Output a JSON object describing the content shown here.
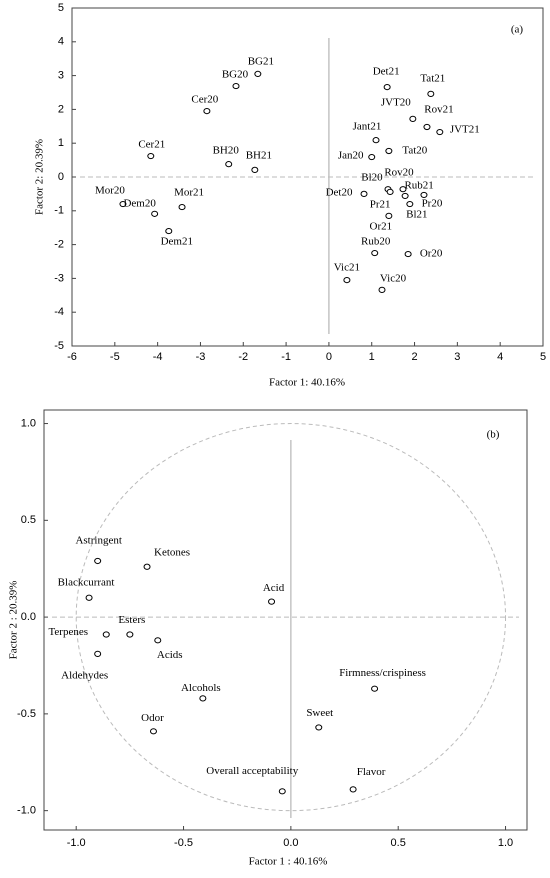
{
  "chart_data": [
    {
      "type": "scatter",
      "annotation": "(a)",
      "x_label": "Factor 1: 40.16%",
      "y_label": "Factor 2: 20.39%",
      "xlim": [
        -6,
        5
      ],
      "ylim": [
        -5,
        5
      ],
      "xticks": [
        -6,
        -5,
        -4,
        -3,
        -2,
        -1,
        0,
        1,
        2,
        3,
        4,
        5
      ],
      "yticks": [
        -5,
        -4,
        -3,
        -2,
        -1,
        0,
        1,
        2,
        3,
        4,
        5
      ],
      "zero_lines": true,
      "unit_circle": false,
      "marker_color": "#000000",
      "labels": [
        "BG21",
        "BG20",
        "Cer20",
        "Cer21",
        "BH20",
        "BH21",
        "Mor20",
        "Mor21",
        "Dem20",
        "Dem21",
        "Det21",
        "Tat21",
        "JVT20",
        "Rov21",
        "JVT21",
        "Jant21",
        "Tat20",
        "Jan20",
        "Bl20",
        "Pr21",
        "Rov20",
        "Rub21",
        "Pr20",
        "Bl21",
        "Or21",
        "Det20",
        "Rub20",
        "Or20",
        "Vic21",
        "Vic20"
      ],
      "x": [
        -1.66,
        -2.17,
        -2.85,
        -4.16,
        -2.34,
        -1.73,
        -4.81,
        -3.43,
        -4.07,
        -3.74,
        1.36,
        2.38,
        1.96,
        2.29,
        2.59,
        1.1,
        1.4,
        1.0,
        1.38,
        1.43,
        1.73,
        1.78,
        2.22,
        1.89,
        1.4,
        0.82,
        1.07,
        1.85,
        0.42,
        1.24
      ],
      "y": [
        3.05,
        2.69,
        1.95,
        0.62,
        0.38,
        0.21,
        -0.8,
        -0.89,
        -1.09,
        -1.6,
        2.66,
        2.46,
        1.72,
        1.48,
        1.33,
        1.09,
        0.77,
        0.59,
        -0.36,
        -0.44,
        -0.36,
        -0.56,
        -0.53,
        -0.8,
        -1.15,
        -0.5,
        -2.25,
        -2.28,
        -3.05,
        -3.34
      ],
      "colors": [
        "#000000",
        "#000000",
        "#000000",
        "#000000",
        "#000000",
        "#000000",
        "#000000",
        "#000000",
        "#000000",
        "#000000",
        "#e0201e",
        "#e0201e",
        "#e0201e",
        "#e0201e",
        "#e0201e",
        "#1f2fb8",
        "#e0201e",
        "#1f2fb8",
        "#1f2fb8",
        "#1f2fb8",
        "#e0201e",
        "#e0201e",
        "#1f2fb8",
        "#1f2fb8",
        "#1f2fb8",
        "#e0201e",
        "#e0201e",
        "#1f2fb8",
        "#1f2fb8",
        "#1f2fb8"
      ]
    },
    {
      "type": "scatter",
      "annotation": "(b)",
      "x_label": "Factor 1 : 40.16%",
      "y_label": "Factor 2 : 20.39%",
      "xlim": [
        -1.15,
        1.1
      ],
      "ylim": [
        -1.1,
        1.07
      ],
      "xticks": [
        {
          "value": -1,
          "label": "-1.0"
        },
        -0.5,
        {
          "value": 0,
          "label": "0.0"
        },
        0.5,
        {
          "value": 1,
          "label": "1.0"
        }
      ],
      "yticks": [
        {
          "value": -1,
          "label": "-1.0"
        },
        -0.5,
        {
          "value": 0,
          "label": "0.0"
        },
        0.5,
        {
          "value": 1,
          "label": "1.0"
        }
      ],
      "zero_lines": true,
      "unit_circle": true,
      "marker_color": "#000000",
      "labels": [
        "Astringent",
        "Ketones",
        "Blackcurrant",
        "Acid",
        "Terpenes",
        "Esters",
        "Acids",
        "Aldehydes",
        "Alcohols",
        "Odor",
        "Firmness/crispiness",
        "Sweet",
        "Overall acceptability",
        "Flavor"
      ],
      "x": [
        -0.9,
        -0.67,
        -0.94,
        -0.09,
        -0.86,
        -0.75,
        -0.62,
        -0.9,
        -0.41,
        -0.64,
        0.39,
        0.13,
        -0.04,
        0.29
      ],
      "y": [
        0.29,
        0.26,
        0.1,
        0.08,
        -0.09,
        -0.09,
        -0.12,
        -0.19,
        -0.42,
        -0.59,
        -0.37,
        -0.57,
        -0.9,
        -0.89
      ],
      "colors": [
        "#e0201e",
        "#000000",
        "#e0201e",
        "#e0201e",
        "#000000",
        "#000000",
        "#000000",
        "#000000",
        "#000000",
        "#e0201e",
        "#e0201e",
        "#e0201e",
        "#e0201e",
        "#e0201e"
      ]
    }
  ]
}
